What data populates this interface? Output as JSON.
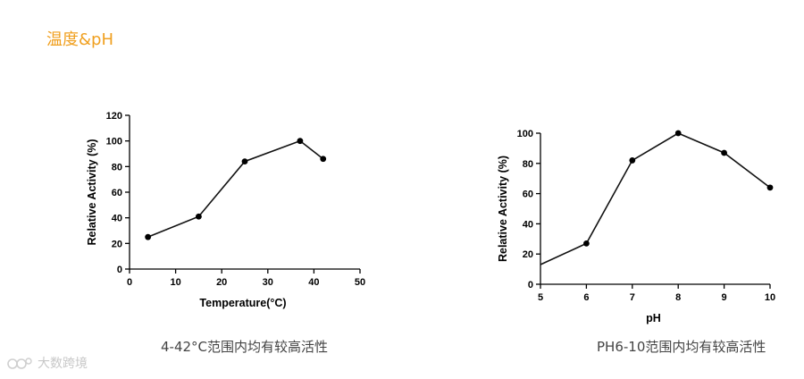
{
  "section_title": "温度&pH",
  "captions": {
    "left": "4-42°C范围内均有较高活性",
    "right": "PH6-10范围内均有较高活性"
  },
  "watermark": {
    "text": "大数跨境"
  },
  "chart_data": [
    {
      "type": "line",
      "xlabel": "Temperature(°C)",
      "ylabel": "Relative Activity (%)",
      "xlim": [
        0,
        50
      ],
      "ylim": [
        0,
        120
      ],
      "x_ticks": [
        0,
        10,
        20,
        30,
        40,
        50
      ],
      "y_ticks": [
        0,
        20,
        40,
        60,
        80,
        100,
        120
      ],
      "series": [
        {
          "x": [
            4,
            15,
            25,
            37,
            42
          ],
          "y": [
            25,
            41,
            84,
            100,
            86
          ]
        }
      ],
      "grid": false
    },
    {
      "type": "line",
      "xlabel": "pH",
      "ylabel": "Relative Activity (%)",
      "xlim": [
        5,
        10
      ],
      "ylim": [
        0,
        100
      ],
      "x_ticks": [
        5,
        6,
        7,
        8,
        9,
        10
      ],
      "y_ticks": [
        0,
        20,
        40,
        60,
        80,
        100
      ],
      "series": [
        {
          "x": [
            5,
            6,
            7,
            8,
            9,
            10
          ],
          "y": [
            13,
            27,
            82,
            100,
            87,
            64
          ],
          "markers": [
            false,
            true,
            true,
            true,
            true,
            true
          ]
        }
      ],
      "grid": false
    }
  ]
}
